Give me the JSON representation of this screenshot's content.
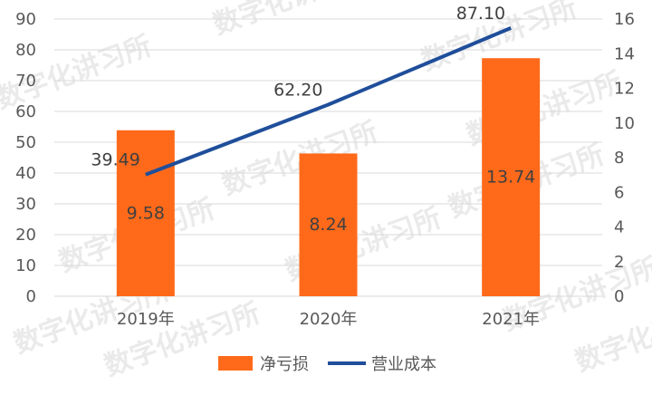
{
  "chart_data": {
    "type": "bar",
    "categories": [
      "2019年",
      "2020年",
      "2021年"
    ],
    "series": [
      {
        "name": "净亏损",
        "kind": "bar",
        "axis": "right",
        "color": "#FF6A1A",
        "values": [
          9.58,
          8.24,
          13.74
        ]
      },
      {
        "name": "营业成本",
        "kind": "line",
        "axis": "left",
        "color": "#1F4E9A",
        "values": [
          39.49,
          62.2,
          87.1
        ]
      }
    ],
    "left_axis": {
      "ylim": [
        0,
        90
      ],
      "ticks": [
        "0",
        "10",
        "20",
        "30",
        "40",
        "50",
        "60",
        "70",
        "80",
        "90"
      ]
    },
    "right_axis": {
      "ylim": [
        0,
        16
      ],
      "ticks": [
        "0",
        "2",
        "4",
        "6",
        "8",
        "10",
        "12",
        "14",
        "16"
      ]
    },
    "data_labels": {
      "bars": [
        "9.58",
        "8.24",
        "13.74"
      ],
      "line": [
        "39.49",
        "62.20",
        "87.10"
      ]
    },
    "legend": {
      "position": "bottom"
    },
    "grid": true,
    "watermark": "数字化讲习所"
  }
}
